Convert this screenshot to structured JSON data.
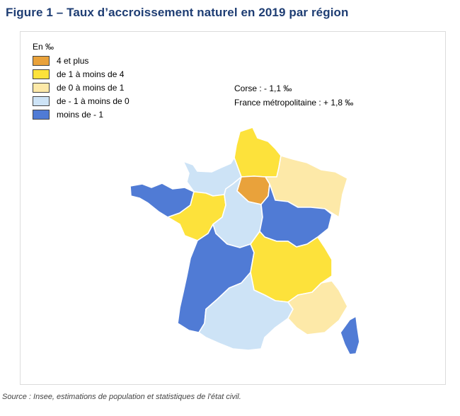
{
  "title": "Figure 1 – Taux d’accroissement naturel en 2019 par région",
  "legend": {
    "title": "En ‰",
    "items": [
      {
        "label": "4 et plus",
        "color": "#e9a23b"
      },
      {
        "label": "de 1 à moins de 4",
        "color": "#fde23b"
      },
      {
        "label": "de 0 à moins de 1",
        "color": "#fde9a8"
      },
      {
        "label": "de - 1 à moins de 0",
        "color": "#cde3f6"
      },
      {
        "label": "moins de - 1",
        "color": "#507bd5"
      }
    ]
  },
  "notes": {
    "corse": "Corse : - 1,1 ‰",
    "france": "France métropolitaine : + 1,8 ‰"
  },
  "regions": [
    {
      "name": "Hauts-de-France",
      "class": "de 1 à moins de 4"
    },
    {
      "name": "Normandie",
      "class": "de - 1 à moins de 0"
    },
    {
      "name": "Île-de-France",
      "class": "4 et plus"
    },
    {
      "name": "Grand Est",
      "class": "de 0 à moins de 1"
    },
    {
      "name": "Bretagne",
      "class": "moins de - 1"
    },
    {
      "name": "Pays de la Loire",
      "class": "de 1 à moins de 4"
    },
    {
      "name": "Centre-Val de Loire",
      "class": "de - 1 à moins de 0"
    },
    {
      "name": "Bourgogne-Franche-Comté",
      "class": "moins de - 1"
    },
    {
      "name": "Nouvelle-Aquitaine",
      "class": "moins de - 1"
    },
    {
      "name": "Auvergne-Rhône-Alpes",
      "class": "de 1 à moins de 4"
    },
    {
      "name": "Occitanie",
      "class": "de - 1 à moins de 0"
    },
    {
      "name": "Provence-Alpes-Côte d'Azur",
      "class": "de 0 à moins de 1"
    },
    {
      "name": "Corse",
      "class": "moins de - 1"
    }
  ],
  "source": "Source : Insee, estimations de population et statistiques de l'état civil."
}
